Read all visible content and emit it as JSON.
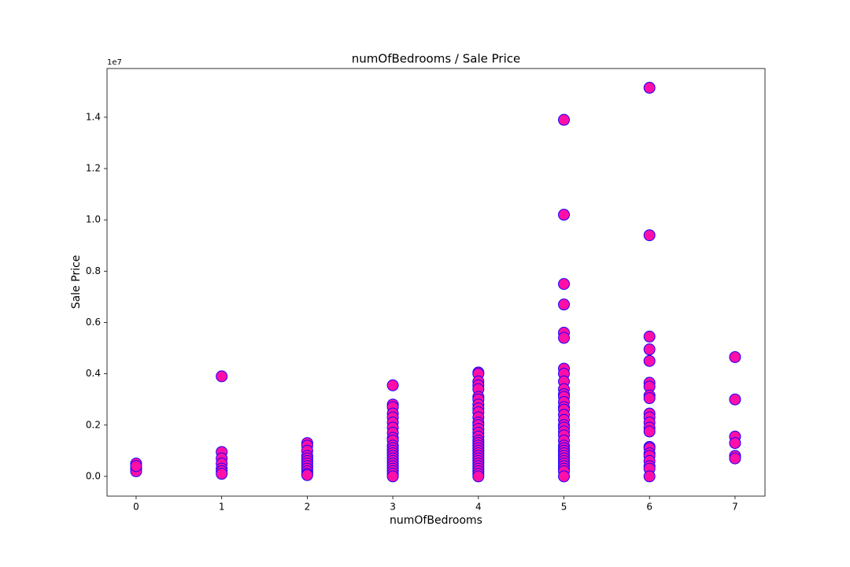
{
  "chart_data": {
    "type": "scatter",
    "title": "numOfBedrooms / Sale Price",
    "x_label": "numOfBedrooms",
    "y_label": "Sale Price",
    "y_offset_label": "1e7",
    "xlim": [
      -0.34,
      7.35
    ],
    "ylim": [
      -0.077,
      1.59
    ],
    "xticks": [
      0,
      1,
      2,
      3,
      4,
      5,
      6,
      7
    ],
    "yticks": [
      {
        "value": 0,
        "label": "0.0"
      },
      0.2,
      0.4,
      0.6,
      0.8,
      {
        "value": 1,
        "label": "1.0"
      },
      1.2,
      1.4
    ],
    "series": [
      {
        "color": "#ff0fa8",
        "edgecolor": "#1a00ff",
        "x": [
          0,
          0,
          0,
          0,
          1,
          1,
          1,
          1,
          1,
          1,
          1,
          2,
          2,
          2,
          2,
          2,
          2,
          2,
          2,
          2,
          2,
          2,
          2,
          3,
          3,
          3,
          3,
          3,
          3,
          3,
          3,
          3,
          3,
          3,
          3,
          3,
          3,
          3,
          3,
          3,
          3,
          3,
          3,
          3,
          3,
          3,
          4,
          4,
          4,
          4,
          4,
          4,
          4,
          4,
          4,
          4,
          4,
          4,
          4,
          4,
          4,
          4,
          4,
          4,
          4,
          4,
          4,
          4,
          4,
          4,
          4,
          4,
          4,
          4,
          4,
          4,
          4,
          5,
          5,
          5,
          5,
          5,
          5,
          5,
          5,
          5,
          5,
          5,
          5,
          5,
          5,
          5,
          5,
          5,
          5,
          5,
          5,
          5,
          5,
          5,
          5,
          5,
          5,
          5,
          5,
          5,
          5,
          5,
          5,
          5,
          5,
          6,
          6,
          6,
          6,
          6,
          6,
          6,
          6,
          6,
          6,
          6,
          6,
          6,
          6,
          6,
          6,
          6,
          6,
          6,
          6,
          6,
          6,
          7,
          7,
          7,
          7,
          7,
          7
        ],
        "values": [
          0.05,
          0.03,
          0.02,
          0.04,
          0.39,
          0.095,
          0.07,
          0.05,
          0.03,
          0.02,
          0.01,
          0.13,
          0.12,
          0.1,
          0.08,
          0.07,
          0.06,
          0.05,
          0.04,
          0.03,
          0.02,
          0.01,
          0.005,
          0.355,
          0.28,
          0.27,
          0.245,
          0.23,
          0.21,
          0.19,
          0.17,
          0.15,
          0.14,
          0.12,
          0.11,
          0.1,
          0.09,
          0.08,
          0.07,
          0.06,
          0.05,
          0.04,
          0.03,
          0.02,
          0.01,
          0.0,
          0.405,
          0.4,
          0.37,
          0.355,
          0.34,
          0.31,
          0.3,
          0.28,
          0.265,
          0.25,
          0.23,
          0.21,
          0.2,
          0.185,
          0.17,
          0.155,
          0.14,
          0.13,
          0.12,
          0.11,
          0.1,
          0.09,
          0.08,
          0.07,
          0.06,
          0.05,
          0.04,
          0.03,
          0.02,
          0.01,
          0.0,
          1.39,
          1.02,
          0.75,
          0.67,
          0.56,
          0.54,
          0.42,
          0.4,
          0.37,
          0.34,
          0.32,
          0.31,
          0.29,
          0.27,
          0.26,
          0.24,
          0.22,
          0.2,
          0.19,
          0.175,
          0.16,
          0.14,
          0.12,
          0.11,
          0.1,
          0.09,
          0.08,
          0.07,
          0.06,
          0.05,
          0.04,
          0.03,
          0.02,
          0.0,
          1.515,
          0.94,
          0.545,
          0.495,
          0.45,
          0.365,
          0.35,
          0.315,
          0.305,
          0.245,
          0.23,
          0.21,
          0.19,
          0.175,
          0.115,
          0.11,
          0.09,
          0.08,
          0.06,
          0.04,
          0.03,
          0.0,
          0.465,
          0.3,
          0.155,
          0.13,
          0.08,
          0.07
        ]
      }
    ]
  }
}
